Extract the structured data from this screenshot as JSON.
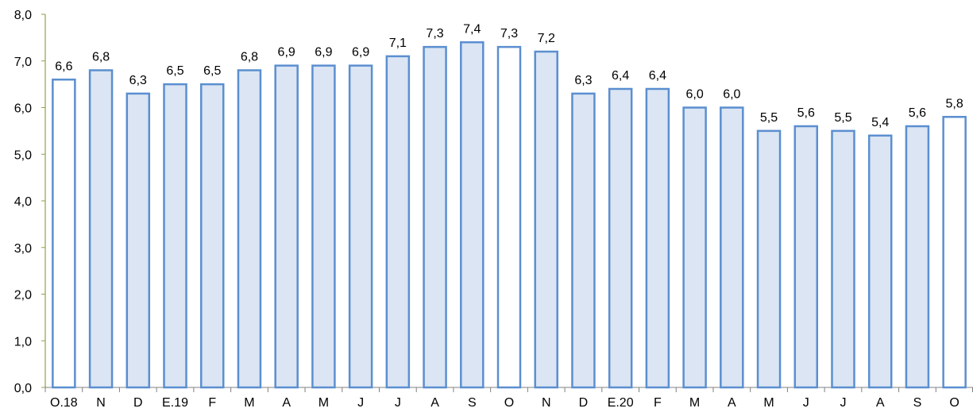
{
  "chart_data": {
    "type": "bar",
    "categories": [
      "O.18",
      "N",
      "D",
      "E.19",
      "F",
      "M",
      "A",
      "M",
      "J",
      "J",
      "A",
      "S",
      "O",
      "N",
      "D",
      "E.20",
      "F",
      "M",
      "A",
      "M",
      "J",
      "J",
      "A",
      "S",
      "O"
    ],
    "values": [
      6.6,
      6.8,
      6.3,
      6.5,
      6.5,
      6.8,
      6.9,
      6.9,
      6.9,
      7.1,
      7.3,
      7.4,
      7.3,
      7.2,
      6.3,
      6.4,
      6.4,
      6.0,
      6.0,
      5.5,
      5.6,
      5.5,
      5.4,
      5.6,
      5.8
    ],
    "data_labels": [
      "6,6",
      "6,8",
      "6,3",
      "6,5",
      "6,5",
      "6,8",
      "6,9",
      "6,9",
      "6,9",
      "7,1",
      "7,3",
      "7,4",
      "7,3",
      "7,2",
      "6,3",
      "6,4",
      "6,4",
      "6,0",
      "6,0",
      "5,5",
      "5,6",
      "5,5",
      "5,4",
      "5,6",
      "5,8"
    ],
    "highlighted": [
      true,
      false,
      false,
      false,
      false,
      false,
      false,
      false,
      false,
      false,
      false,
      false,
      true,
      false,
      false,
      false,
      false,
      false,
      false,
      false,
      false,
      false,
      false,
      false,
      true
    ],
    "ylim": [
      0,
      8
    ],
    "yticks": [
      0,
      1,
      2,
      3,
      4,
      5,
      6,
      7,
      8
    ],
    "ytick_labels": [
      "0,0",
      "1,0",
      "2,0",
      "3,0",
      "4,0",
      "5,0",
      "6,0",
      "7,0",
      "8,0"
    ],
    "title": "",
    "xlabel": "",
    "ylabel": "",
    "grid": false,
    "colors": {
      "bar_fill": "#dbe5f3",
      "bar_fill_highlight": "#ffffff",
      "bar_stroke": "#5b8fd0",
      "axis_y": "#8ea34c",
      "axis_x": "#808080"
    }
  }
}
